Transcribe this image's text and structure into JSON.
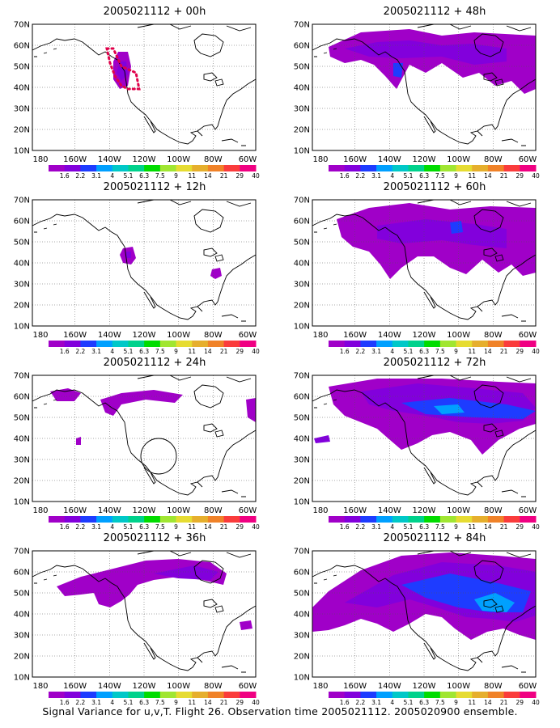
{
  "figure": {
    "caption": "Signal Variance for u,v,T. Flight 26. Observation time 2005021112. 2005020900 ensemble.",
    "colors": [
      "#a000c8",
      "#8200dc",
      "#1e3cff",
      "#00a0ff",
      "#00c8c8",
      "#00d28c",
      "#00dc00",
      "#a0e632",
      "#e6dc32",
      "#e6af2d",
      "#f08228",
      "#fa3c3c",
      "#f00082"
    ]
  },
  "axes": {
    "lat_ticks": [
      "10N",
      "20N",
      "30N",
      "40N",
      "50N",
      "60N",
      "70N"
    ],
    "lon_ticks": [
      "180",
      "160W",
      "140W",
      "120W",
      "100W",
      "80W",
      "60W"
    ],
    "colorbar_labels": [
      "1.6",
      "2.2",
      "3.1",
      "4",
      "5.1",
      "6.3",
      "7.5",
      "9",
      "11",
      "14",
      "21",
      "29",
      "40"
    ]
  },
  "panels": [
    {
      "title": "2005021112 + 00h"
    },
    {
      "title": "2005021112 + 48h"
    },
    {
      "title": "2005021112 + 12h"
    },
    {
      "title": "2005021112 + 60h"
    },
    {
      "title": "2005021112 + 24h"
    },
    {
      "title": "2005021112 + 72h"
    },
    {
      "title": "2005021112 + 36h"
    },
    {
      "title": "2005021112 + 84h"
    }
  ]
}
